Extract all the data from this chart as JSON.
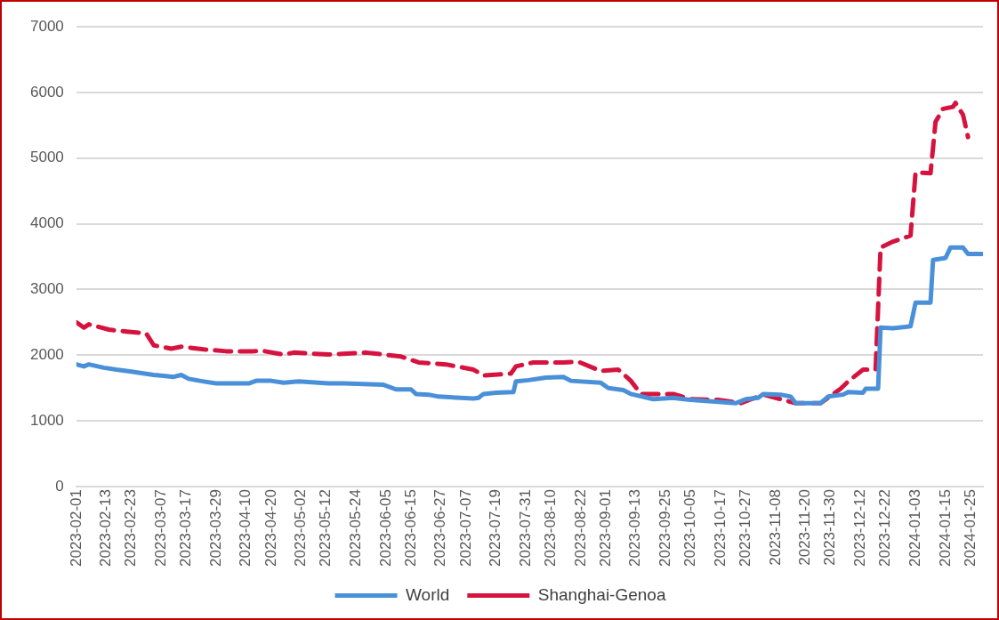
{
  "chart_data": {
    "type": "line",
    "xlim": [
      "2023-02-01",
      "2024-01-30"
    ],
    "xticks": [
      "2023-02-01",
      "2023-02-13",
      "2023-02-23",
      "2023-03-07",
      "2023-03-17",
      "2023-03-29",
      "2023-04-10",
      "2023-04-20",
      "2023-05-02",
      "2023-05-12",
      "2023-05-24",
      "2023-06-05",
      "2023-06-15",
      "2023-06-27",
      "2023-07-07",
      "2023-07-19",
      "2023-07-31",
      "2023-08-10",
      "2023-08-22",
      "2023-09-01",
      "2023-09-13",
      "2023-09-25",
      "2023-10-05",
      "2023-10-17",
      "2023-10-27",
      "2023-11-08",
      "2023-11-20",
      "2023-11-30",
      "2023-12-12",
      "2023-12-22",
      "2024-01-03",
      "2024-01-15",
      "2024-01-25"
    ],
    "ylim": [
      0,
      7000
    ],
    "yticks": [
      0,
      1000,
      2000,
      3000,
      4000,
      5000,
      6000,
      7000
    ],
    "grid": "y",
    "legend": "bottom",
    "marker": "none",
    "series": [
      {
        "name": "World",
        "color": "#4a90d9",
        "line_style": "solid",
        "x": [
          "2023-02-01",
          "2023-02-04",
          "2023-02-06",
          "2023-02-12",
          "2023-02-17",
          "2023-02-23",
          "2023-03-04",
          "2023-03-07",
          "2023-03-12",
          "2023-03-15",
          "2023-03-18",
          "2023-03-24",
          "2023-03-29",
          "2023-04-11",
          "2023-04-14",
          "2023-04-20",
          "2023-04-25",
          "2023-05-01",
          "2023-05-13",
          "2023-05-19",
          "2023-06-04",
          "2023-06-09",
          "2023-06-15",
          "2023-06-17",
          "2023-06-22",
          "2023-06-26",
          "2023-07-10",
          "2023-07-12",
          "2023-07-14",
          "2023-07-19",
          "2023-07-26",
          "2023-07-27",
          "2023-08-01",
          "2023-08-08",
          "2023-08-15",
          "2023-08-18",
          "2023-08-30",
          "2023-09-02",
          "2023-09-08",
          "2023-09-11",
          "2023-09-20",
          "2023-09-28",
          "2023-10-05",
          "2023-10-16",
          "2023-10-23",
          "2023-10-27",
          "2023-11-01",
          "2023-11-03",
          "2023-11-10",
          "2023-11-14",
          "2023-11-16",
          "2023-11-26",
          "2023-11-29",
          "2023-12-05",
          "2023-12-07",
          "2023-12-13",
          "2023-12-14",
          "2023-12-19",
          "2023-12-20",
          "2023-12-25",
          "2024-01-01",
          "2024-01-03",
          "2024-01-09",
          "2024-01-10",
          "2024-01-15",
          "2024-01-17",
          "2024-01-22",
          "2024-01-24",
          "2024-01-30"
        ],
        "values": [
          1860,
          1830,
          1860,
          1810,
          1780,
          1750,
          1700,
          1690,
          1670,
          1700,
          1640,
          1600,
          1570,
          1570,
          1610,
          1610,
          1580,
          1600,
          1570,
          1570,
          1550,
          1480,
          1480,
          1410,
          1400,
          1370,
          1340,
          1350,
          1410,
          1430,
          1440,
          1600,
          1620,
          1660,
          1670,
          1610,
          1580,
          1500,
          1470,
          1410,
          1330,
          1350,
          1320,
          1290,
          1270,
          1330,
          1350,
          1410,
          1400,
          1370,
          1270,
          1270,
          1370,
          1400,
          1440,
          1430,
          1490,
          1490,
          2420,
          2410,
          2440,
          2800,
          2800,
          3450,
          3480,
          3640,
          3640,
          3540,
          3540
        ]
      },
      {
        "name": "Shanghai-Genoa",
        "color": "#d6133f",
        "line_style": "dashed",
        "x": [
          "2023-02-01",
          "2023-02-04",
          "2023-02-06",
          "2023-02-14",
          "2023-02-21",
          "2023-03-01",
          "2023-03-04",
          "2023-03-11",
          "2023-03-15",
          "2023-03-24",
          "2023-04-02",
          "2023-04-13",
          "2023-04-16",
          "2023-04-25",
          "2023-04-29",
          "2023-05-13",
          "2023-05-28",
          "2023-06-11",
          "2023-06-18",
          "2023-06-29",
          "2023-07-10",
          "2023-07-14",
          "2023-07-25",
          "2023-07-27",
          "2023-08-03",
          "2023-08-15",
          "2023-08-21",
          "2023-08-30",
          "2023-09-06",
          "2023-09-11",
          "2023-09-15",
          "2023-09-28",
          "2023-10-05",
          "2023-10-16",
          "2023-10-25",
          "2023-11-03",
          "2023-11-10",
          "2023-11-16",
          "2023-11-26",
          "2023-12-04",
          "2023-12-07",
          "2023-12-13",
          "2023-12-18",
          "2023-12-20",
          "2023-12-25",
          "2024-01-01",
          "2024-01-03",
          "2024-01-09",
          "2024-01-11",
          "2024-01-14",
          "2024-01-18",
          "2024-01-19",
          "2024-01-22",
          "2024-01-24"
        ],
        "values": [
          2500,
          2420,
          2470,
          2390,
          2360,
          2330,
          2150,
          2100,
          2130,
          2090,
          2060,
          2060,
          2070,
          2010,
          2040,
          2010,
          2040,
          1980,
          1890,
          1860,
          1780,
          1690,
          1720,
          1830,
          1890,
          1890,
          1900,
          1760,
          1780,
          1610,
          1410,
          1410,
          1330,
          1320,
          1270,
          1400,
          1330,
          1270,
          1270,
          1490,
          1600,
          1780,
          1780,
          3640,
          3730,
          3820,
          4780,
          4770,
          5550,
          5750,
          5780,
          5840,
          5660,
          5320
        ]
      }
    ]
  }
}
